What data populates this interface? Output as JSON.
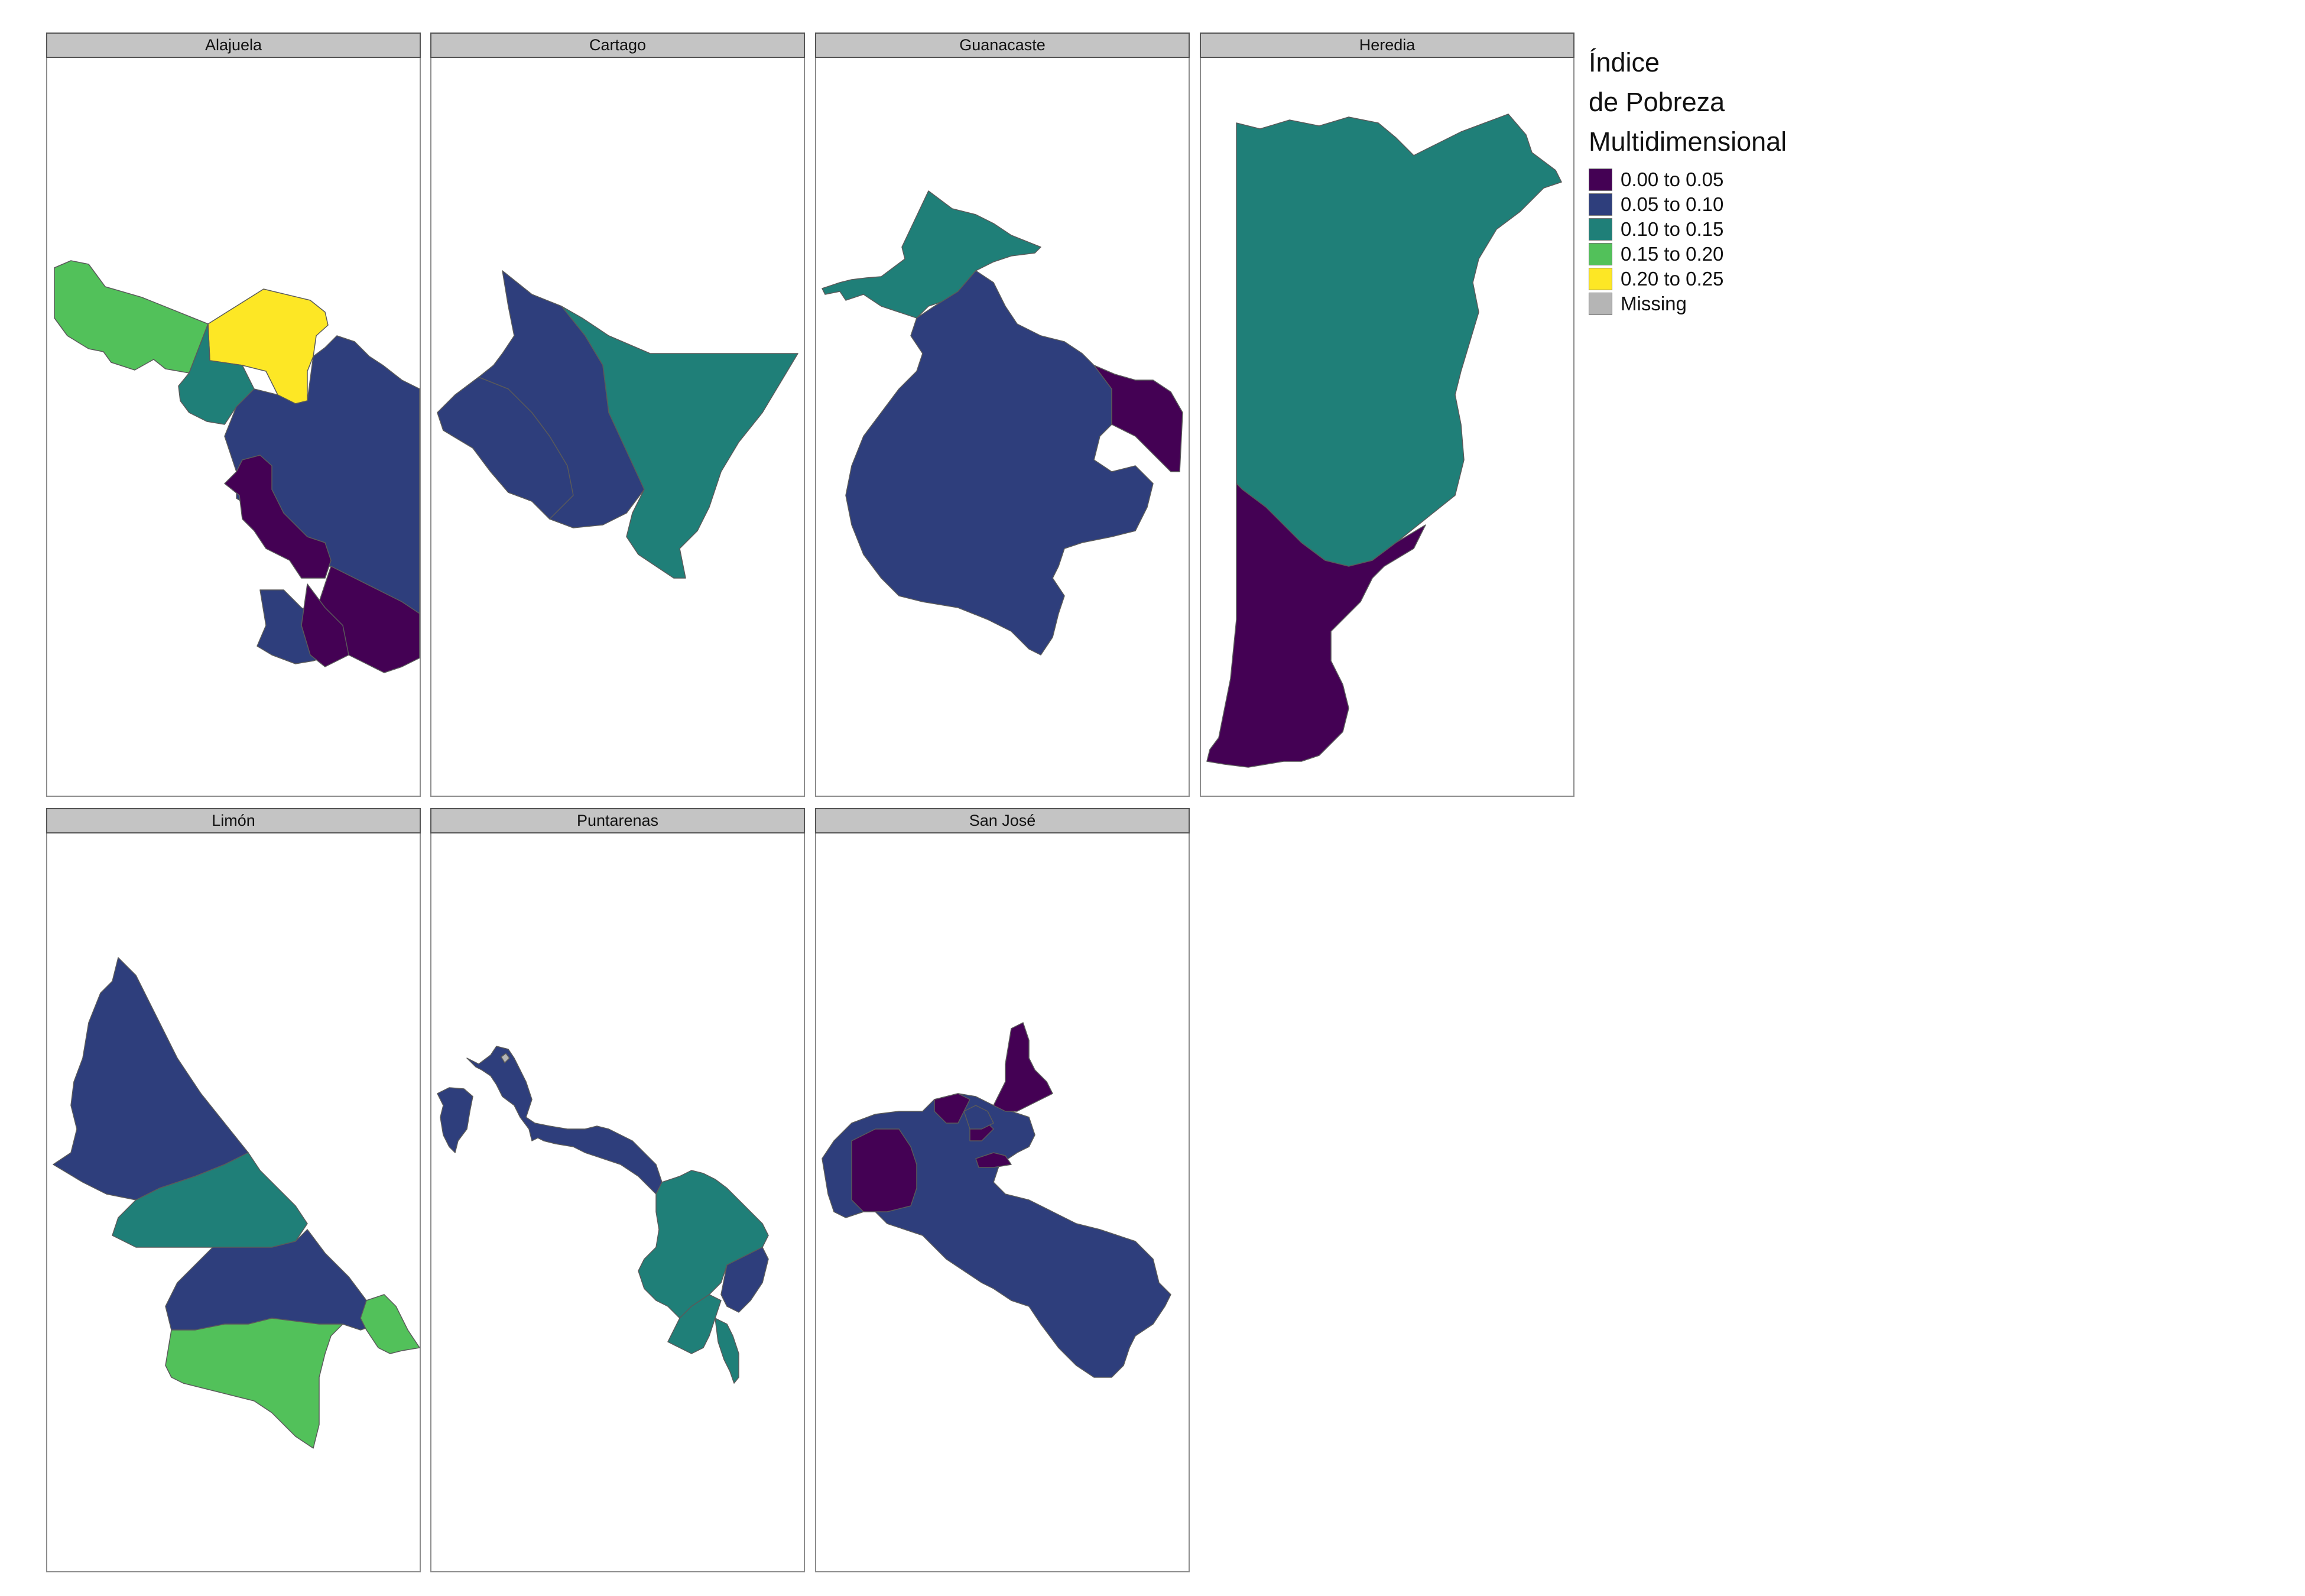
{
  "legend": {
    "title_lines": [
      "Índice",
      "de Pobreza",
      "Multidimensional"
    ],
    "items": [
      {
        "label": "0.00 to 0.05",
        "color": "#440154"
      },
      {
        "label": "0.05 to 0.10",
        "color": "#2e3e7c"
      },
      {
        "label": "0.10 to 0.15",
        "color": "#1f7f78"
      },
      {
        "label": "0.15 to 0.20",
        "color": "#52c15a"
      },
      {
        "label": "0.20 to 0.25",
        "color": "#fde725"
      },
      {
        "label": "Missing",
        "color": "#b5b5b5"
      }
    ]
  },
  "panels": [
    {
      "title": "Alajuela"
    },
    {
      "title": "Cartago"
    },
    {
      "title": "Guanacaste"
    },
    {
      "title": "Heredia"
    },
    {
      "title": "Limón"
    },
    {
      "title": "Puntarenas"
    },
    {
      "title": "San José"
    }
  ]
}
